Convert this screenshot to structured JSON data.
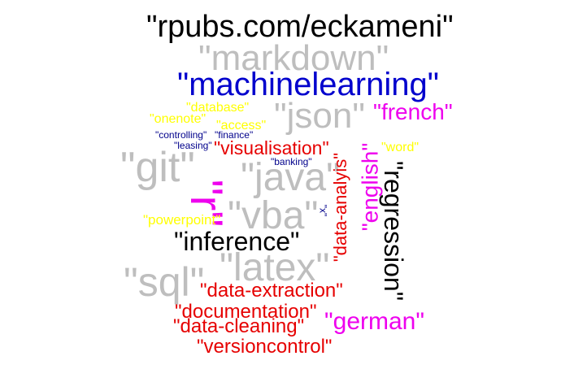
{
  "colors": {
    "black": "#000000",
    "gray": "#bebebe",
    "blue": "#0000cd",
    "navy": "#00008b",
    "magenta": "#ee00ee",
    "red": "#e60000",
    "yellow": "#ffff00"
  },
  "words": {
    "rpubs": "\"rpubs.com/eckameni\"",
    "markdown": "\"markdown\"",
    "machinelearning": "\"machinelearning\"",
    "database": "\"database\"",
    "json": "\"json\"",
    "french": "\"french\"",
    "onenote": "\"onenote\"",
    "access": "\"access\"",
    "controlling": "\"controlling\"",
    "finance": "\"finance\"",
    "leasing": "\"leasing\"",
    "visualisation": "\"visualisation\"",
    "word": "\"word\"",
    "banking": "\"banking\"",
    "git": "\"git\"",
    "java": "\"java\"",
    "r": "\"r\"",
    "vba": "\"vba\"",
    "x": "\"x\"",
    "powerpoint": "\"powerpoint\"",
    "data_analysis": "\"data-analyis\"",
    "english": "\"english\"",
    "regression": "\"regression\"",
    "inference": "\"inference\"",
    "latex": "\"latex\"",
    "sql": "\"sql\"",
    "data_extraction": "\"data-extraction\"",
    "documentation": "\"documentation\"",
    "german": "\"german\"",
    "data_cleaning": "\"data-cleaning\"",
    "versioncontrol": "\"versioncontrol\""
  }
}
